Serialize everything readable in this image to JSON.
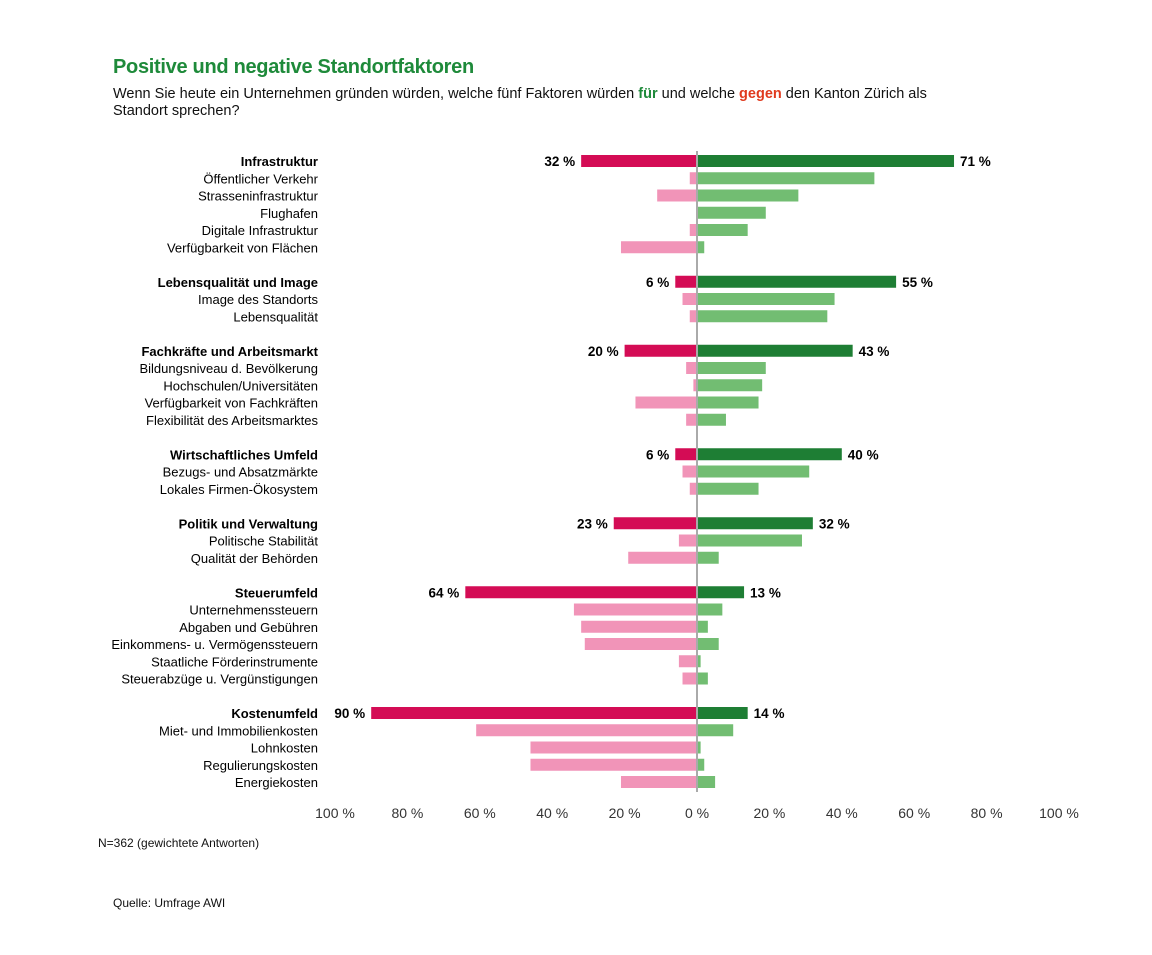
{
  "title": "Positive und negative Standortfaktoren",
  "subtitle": {
    "part1": "Wenn Sie heute ein Unternehmen gründen würden, welche fünf Faktoren würden ",
    "pos_word": "für",
    "part2": " und welche ",
    "neg_word": "gegen",
    "part3": " den Kanton Zürich als Standort sprechen?"
  },
  "note": "N=362 (gewichtete Antworten)",
  "source": "Quelle: Umfrage AWI",
  "colors": {
    "neg_main": "#d40c55",
    "neg_sub": "#f194b8",
    "pos_main": "#1e7e34",
    "pos_sub": "#72bd72",
    "axis": "#aaaaaa",
    "title": "#1e8a3a",
    "neg_word": "#e03a1e"
  },
  "chart_data": {
    "type": "bar",
    "orientation": "horizontal-diverging",
    "xlim": [
      -100,
      100
    ],
    "x_ticks": [
      "100 %",
      "80 %",
      "60 %",
      "40 %",
      "20 %",
      "0 %",
      "20 %",
      "40 %",
      "60 %",
      "80 %",
      "100 %"
    ],
    "grid": false,
    "groups": [
      {
        "label": "Infrastruktur",
        "against": 32,
        "for": 71,
        "against_label": "32 %",
        "for_label": "71 %",
        "items": [
          {
            "label": "Öffentlicher Verkehr",
            "against": 2,
            "for": 49
          },
          {
            "label": "Strasseninfrastruktur",
            "against": 11,
            "for": 28
          },
          {
            "label": "Flughafen",
            "against": 0,
            "for": 19
          },
          {
            "label": "Digitale Infrastruktur",
            "against": 2,
            "for": 14
          },
          {
            "label": "Verfügbarkeit von Flächen",
            "against": 21,
            "for": 2
          }
        ]
      },
      {
        "label": "Lebensqualität und Image",
        "against": 6,
        "for": 55,
        "against_label": "6 %",
        "for_label": "55 %",
        "items": [
          {
            "label": "Image des Standorts",
            "against": 4,
            "for": 38
          },
          {
            "label": "Lebensqualität",
            "against": 2,
            "for": 36
          }
        ]
      },
      {
        "label": "Fachkräfte und Arbeitsmarkt",
        "against": 20,
        "for": 43,
        "against_label": "20 %",
        "for_label": "43 %",
        "items": [
          {
            "label": "Bildungsniveau d. Bevölkerung",
            "against": 3,
            "for": 19
          },
          {
            "label": "Hochschulen/Universitäten",
            "against": 1,
            "for": 18
          },
          {
            "label": "Verfügbarkeit von Fachkräften",
            "against": 17,
            "for": 17
          },
          {
            "label": "Flexibilität des Arbeitsmarktes",
            "against": 3,
            "for": 8
          }
        ]
      },
      {
        "label": "Wirtschaftliches Umfeld",
        "against": 6,
        "for": 40,
        "against_label": "6 %",
        "for_label": "40 %",
        "items": [
          {
            "label": "Bezugs- und Absatzmärkte",
            "against": 4,
            "for": 31
          },
          {
            "label": "Lokales Firmen-Ökosystem",
            "against": 2,
            "for": 17
          }
        ]
      },
      {
        "label": "Politik und Verwaltung",
        "against": 23,
        "for": 32,
        "against_label": "23 %",
        "for_label": "32 %",
        "items": [
          {
            "label": "Politische Stabilität",
            "against": 5,
            "for": 29
          },
          {
            "label": "Qualität der Behörden",
            "against": 19,
            "for": 6
          }
        ]
      },
      {
        "label": "Steuerumfeld",
        "against": 64,
        "for": 13,
        "against_label": "64 %",
        "for_label": "13 %",
        "items": [
          {
            "label": "Unternehmenssteuern",
            "against": 34,
            "for": 7
          },
          {
            "label": "Abgaben und Gebühren",
            "against": 32,
            "for": 3
          },
          {
            "label": "Einkommens- u. Vermögenssteuern",
            "against": 31,
            "for": 6
          },
          {
            "label": "Staatliche Förderinstrumente",
            "against": 5,
            "for": 1
          },
          {
            "label": "Steuerabzüge u. Vergünstigungen",
            "against": 4,
            "for": 3
          }
        ]
      },
      {
        "label": "Kostenumfeld",
        "against": 90,
        "for": 14,
        "against_label": "90 %",
        "for_label": "14 %",
        "items": [
          {
            "label": "Miet- und Immobilienkosten",
            "against": 61,
            "for": 10
          },
          {
            "label": "Lohnkosten",
            "against": 46,
            "for": 1
          },
          {
            "label": "Regulierungskosten",
            "against": 46,
            "for": 2
          },
          {
            "label": "Energiekosten",
            "against": 21,
            "for": 5
          }
        ]
      }
    ]
  }
}
